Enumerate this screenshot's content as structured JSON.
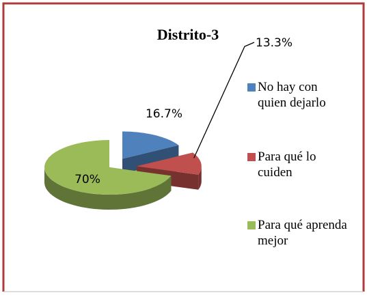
{
  "chart_data": {
    "type": "pie",
    "title": "Distrito-3",
    "categories": [
      "No hay con quien dejarlo",
      "Para qué lo cuiden",
      "Para qué aprenda mejor"
    ],
    "values": [
      16.7,
      13.3,
      70
    ],
    "value_labels": [
      "16.7%",
      "13.3%",
      "70%"
    ],
    "colors": [
      "#4f81bd",
      "#c0504d",
      "#9bbb59"
    ],
    "legend": "right"
  }
}
